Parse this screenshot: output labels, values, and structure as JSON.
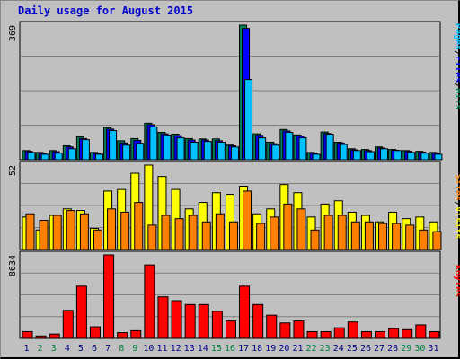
{
  "title": "Daily usage for August 2015",
  "colors": {
    "hits": "#00805c",
    "files": "#0000ff",
    "pages": "#00c0ff",
    "visits": "#ffff00",
    "sites": "#ff8000",
    "kbytes": "#ff0000",
    "background": "#c0c0c0",
    "gridline": "#808080",
    "weekend_day_label": "#008040",
    "weekday_day_label": "#000080"
  },
  "chart_data": [
    {
      "type": "bar",
      "panel": "hits-files-pages",
      "ymax_label": "369",
      "ylim": [
        0,
        369
      ],
      "legend": [
        {
          "label": "Pages",
          "color": "#00c0ff"
        },
        {
          "label": "/",
          "color": "#000000"
        },
        {
          "label": "Files",
          "color": "#0000ff"
        },
        {
          "label": "/",
          "color": "#000000"
        },
        {
          "label": "Hits",
          "color": "#00805c"
        }
      ],
      "categories": [
        "1",
        "2",
        "3",
        "4",
        "5",
        "6",
        "7",
        "8",
        "9",
        "10",
        "11",
        "12",
        "13",
        "14",
        "15",
        "16",
        "17",
        "18",
        "19",
        "20",
        "21",
        "22",
        "23",
        "24",
        "25",
        "26",
        "27",
        "28",
        "29",
        "30",
        "31"
      ],
      "series": [
        {
          "name": "Hits",
          "values": [
            25,
            20,
            25,
            38,
            63,
            20,
            88,
            52,
            58,
            100,
            75,
            70,
            58,
            57,
            57,
            40,
            369,
            71,
            48,
            83,
            68,
            20,
            76,
            48,
            30,
            28,
            35,
            28,
            25,
            23,
            20
          ]
        },
        {
          "name": "Files",
          "values": [
            23,
            18,
            22,
            35,
            58,
            17,
            84,
            46,
            53,
            96,
            71,
            66,
            54,
            54,
            52,
            38,
            360,
            67,
            44,
            79,
            65,
            18,
            72,
            46,
            27,
            25,
            32,
            26,
            23,
            21,
            18
          ]
        },
        {
          "name": "Pages",
          "values": [
            20,
            15,
            18,
            30,
            55,
            15,
            80,
            40,
            45,
            90,
            68,
            60,
            48,
            50,
            48,
            35,
            220,
            60,
            40,
            75,
            60,
            15,
            70,
            42,
            25,
            22,
            30,
            25,
            20,
            18,
            15
          ]
        }
      ]
    },
    {
      "type": "bar",
      "panel": "visits-sites",
      "ymax_label": "52",
      "ylim": [
        0,
        52
      ],
      "legend": [
        {
          "label": "Sites",
          "color": "#ff8000"
        },
        {
          "label": "/",
          "color": "#000000"
        },
        {
          "label": "Visits",
          "color": "#ffff00"
        }
      ],
      "categories": [
        "1",
        "2",
        "3",
        "4",
        "5",
        "6",
        "7",
        "8",
        "9",
        "10",
        "11",
        "12",
        "13",
        "14",
        "15",
        "16",
        "17",
        "18",
        "19",
        "20",
        "21",
        "22",
        "23",
        "24",
        "25",
        "26",
        "27",
        "28",
        "29",
        "30",
        "31"
      ],
      "series": [
        {
          "name": "Visits",
          "values": [
            20,
            12,
            21,
            25,
            24,
            13,
            36,
            37,
            47,
            52,
            45,
            37,
            25,
            29,
            35,
            34,
            39,
            22,
            25,
            40,
            35,
            20,
            28,
            30,
            23,
            21,
            17,
            23,
            19,
            20,
            17
          ]
        },
        {
          "name": "Sites",
          "values": [
            22,
            18,
            21,
            24,
            22,
            12,
            25,
            23,
            29,
            15,
            21,
            19,
            21,
            17,
            22,
            17,
            36,
            16,
            20,
            28,
            25,
            12,
            21,
            21,
            17,
            17,
            16,
            16,
            15,
            12,
            11
          ]
        }
      ]
    },
    {
      "type": "bar",
      "panel": "kbytes",
      "ymax_label": "8634",
      "ylim": [
        0,
        8634
      ],
      "legend": [
        {
          "label": "KBytes",
          "color": "#ff0000"
        }
      ],
      "categories": [
        "1",
        "2",
        "3",
        "4",
        "5",
        "6",
        "7",
        "8",
        "9",
        "10",
        "11",
        "12",
        "13",
        "14",
        "15",
        "16",
        "17",
        "18",
        "19",
        "20",
        "21",
        "22",
        "23",
        "24",
        "25",
        "26",
        "27",
        "28",
        "29",
        "30",
        "31"
      ],
      "series": [
        {
          "name": "KBytes",
          "values": [
            700,
            250,
            450,
            2900,
            5400,
            1200,
            8634,
            600,
            800,
            7600,
            4300,
            3900,
            3500,
            3500,
            2800,
            1800,
            5400,
            3500,
            2400,
            1600,
            1800,
            700,
            700,
            1100,
            1700,
            700,
            700,
            1000,
            900,
            1400,
            700
          ]
        }
      ]
    }
  ],
  "day_colors": [
    "wd",
    "we",
    "we",
    "wd",
    "wd",
    "wd",
    "wd",
    "we",
    "we",
    "wd",
    "wd",
    "wd",
    "wd",
    "wd",
    "we",
    "we",
    "wd",
    "wd",
    "wd",
    "wd",
    "wd",
    "we",
    "we",
    "wd",
    "wd",
    "wd",
    "wd",
    "wd",
    "we",
    "we",
    "wd"
  ]
}
